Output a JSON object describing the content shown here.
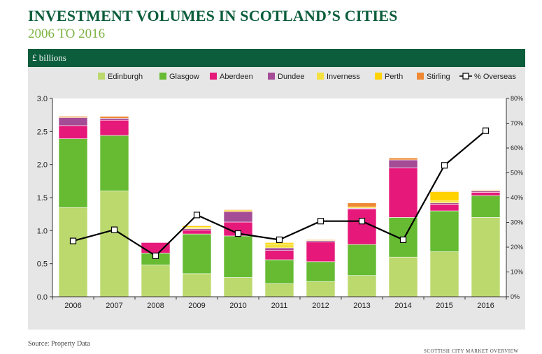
{
  "header": {
    "title": "INVESTMENT VOLUMES IN SCOTLAND’S CITIES",
    "subtitle": "2006 TO 2016",
    "band_label": "£ billions"
  },
  "footer": {
    "source": "Source: Property Data",
    "publication": "SCOTTISH CITY MARKET OVERVIEW"
  },
  "chart_data": {
    "type": "bar",
    "stacked": true,
    "categories": [
      "2006",
      "2007",
      "2008",
      "2009",
      "2010",
      "2011",
      "2012",
      "2013",
      "2014",
      "2015",
      "2016"
    ],
    "series": [
      {
        "name": "Edinburgh",
        "color": "#bcd96d",
        "values": [
          1.35,
          1.6,
          0.48,
          0.35,
          0.29,
          0.2,
          0.23,
          0.32,
          0.6,
          0.68,
          1.2
        ]
      },
      {
        "name": "Glasgow",
        "color": "#66bb33",
        "values": [
          1.04,
          0.84,
          0.18,
          0.6,
          0.63,
          0.36,
          0.3,
          0.47,
          0.6,
          0.62,
          0.33
        ]
      },
      {
        "name": "Aberdeen",
        "color": "#e6197a",
        "values": [
          0.2,
          0.23,
          0.16,
          0.06,
          0.21,
          0.14,
          0.3,
          0.54,
          0.75,
          0.1,
          0.05
        ]
      },
      {
        "name": "Dundee",
        "color": "#a54c96",
        "values": [
          0.12,
          0.03,
          0.0,
          0.02,
          0.16,
          0.04,
          0.02,
          0.01,
          0.12,
          0.02,
          0.02
        ]
      },
      {
        "name": "Inverness",
        "color": "#f5e13d",
        "values": [
          0.0,
          0.0,
          0.0,
          0.02,
          0.0,
          0.06,
          0.0,
          0.02,
          0.0,
          0.03,
          0.0
        ]
      },
      {
        "name": "Perth",
        "color": "#ffd200",
        "values": [
          0.0,
          0.0,
          0.0,
          0.02,
          0.02,
          0.02,
          0.01,
          0.0,
          0.0,
          0.14,
          0.01
        ]
      },
      {
        "name": "Stirling",
        "color": "#ee8833",
        "values": [
          0.02,
          0.03,
          0.0,
          0.01,
          0.01,
          0.0,
          0.01,
          0.06,
          0.03,
          0.01,
          0.01
        ]
      }
    ],
    "line_series": {
      "name": "% Overseas",
      "axis": "right",
      "color": "#000000",
      "values": [
        22.5,
        27,
        16.5,
        33,
        25.5,
        23,
        30.5,
        30.5,
        23,
        53,
        67
      ]
    },
    "y_left": {
      "min": 0,
      "max": 3.0,
      "ticks": [
        "0.0",
        "0.5",
        "1.0",
        "1.5",
        "2.0",
        "2.5",
        "3.0"
      ]
    },
    "y_right": {
      "min": 0,
      "max": 80,
      "ticks": [
        "0%",
        "10%",
        "20%",
        "30%",
        "40%",
        "50%",
        "60%",
        "70%",
        "80%"
      ]
    },
    "legend_position": "top",
    "grid": false
  }
}
